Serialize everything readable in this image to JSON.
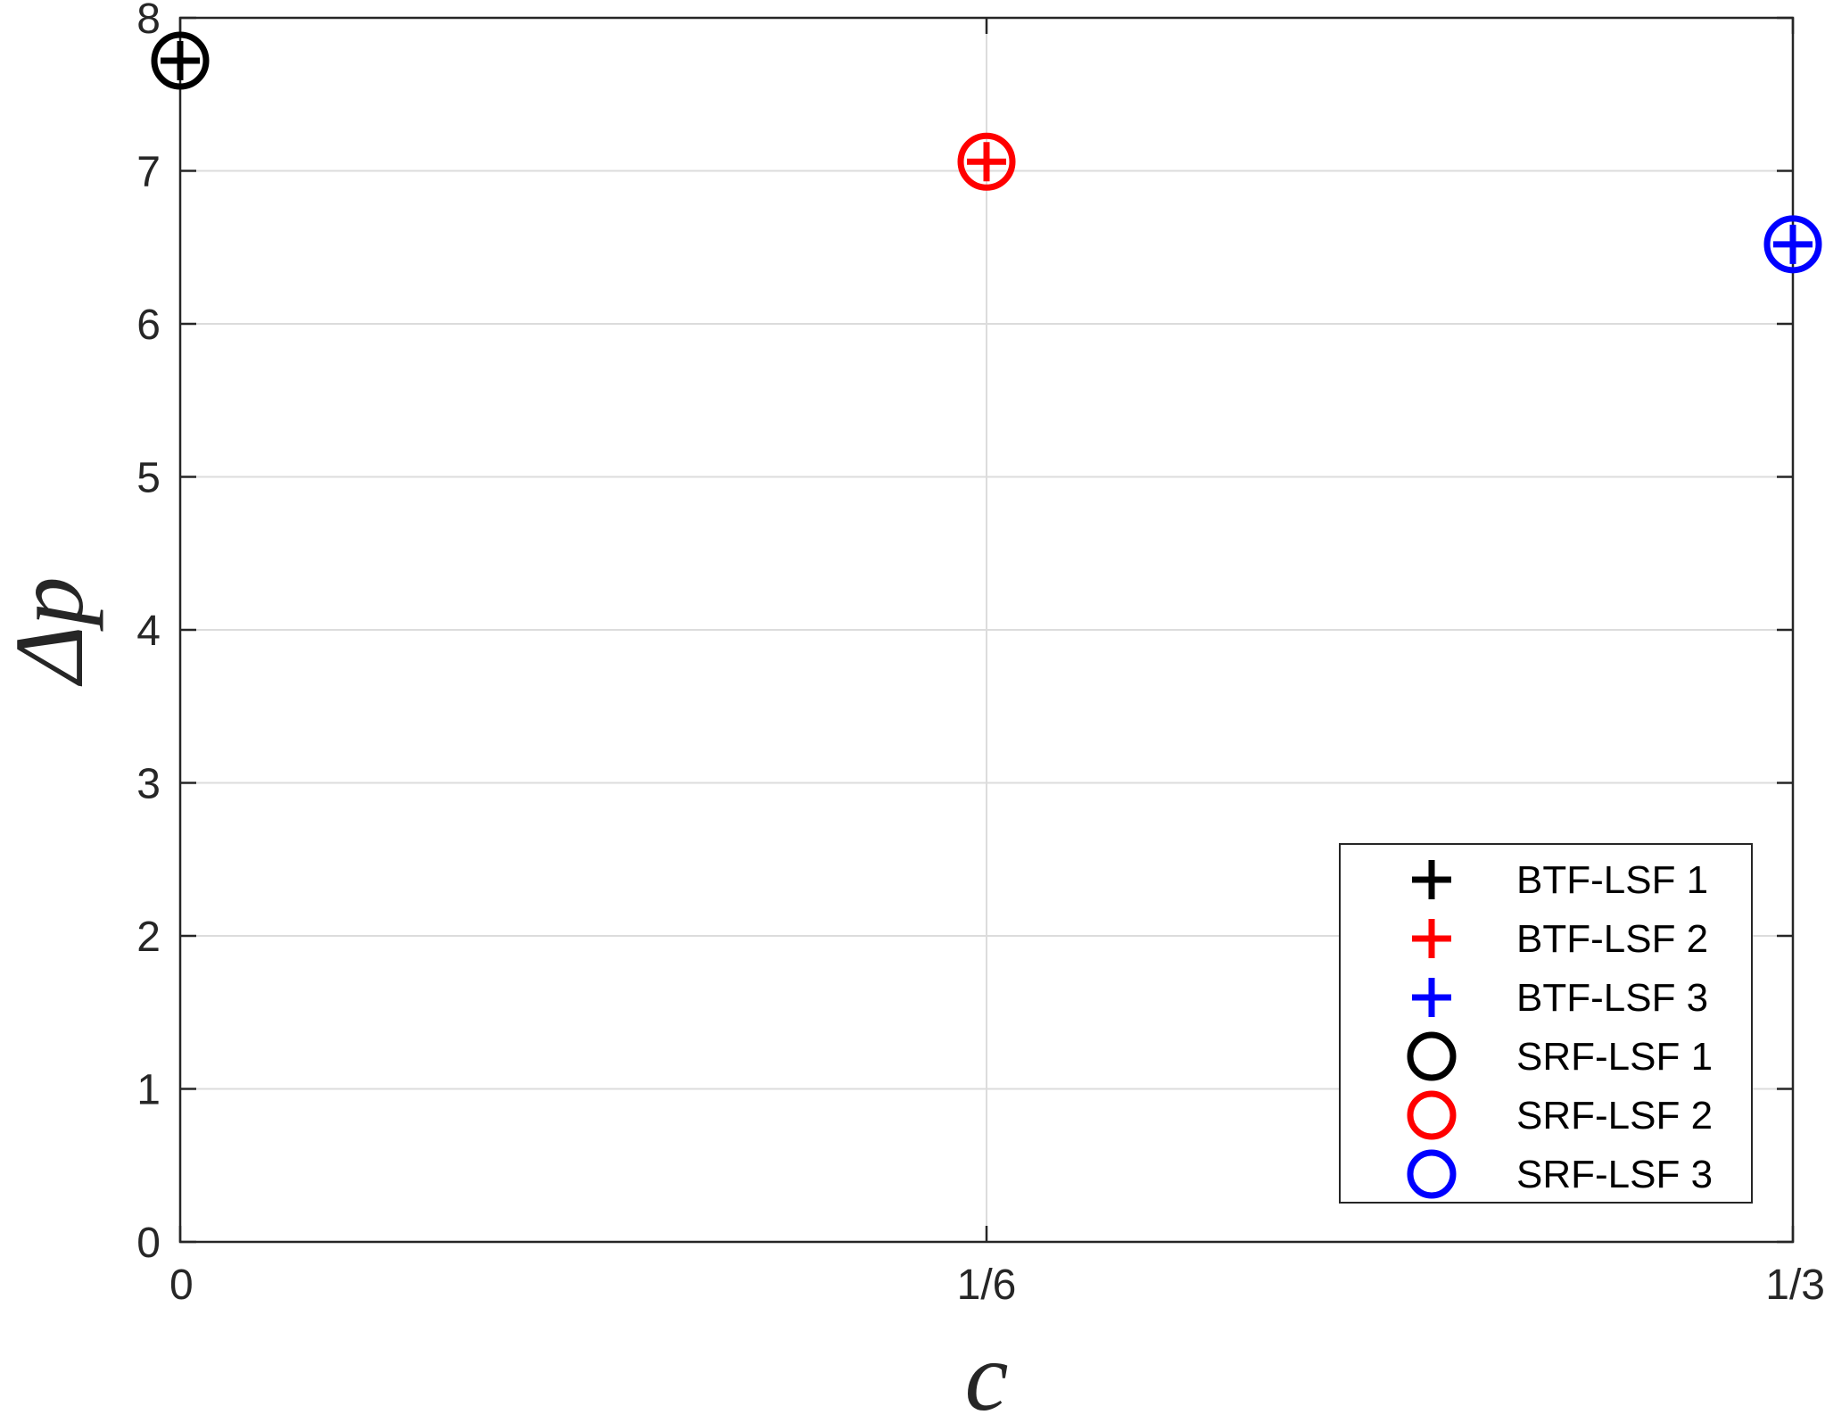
{
  "chart_data": {
    "type": "scatter",
    "xlabel": "c",
    "ylabel": "Δp",
    "xlim": [
      0,
      0.3333333
    ],
    "ylim": [
      0,
      8
    ],
    "grid": true,
    "x_ticks": [
      {
        "value": 0,
        "label": "0"
      },
      {
        "value": 0.1666667,
        "label": "1/6"
      },
      {
        "value": 0.3333333,
        "label": "1/3"
      }
    ],
    "y_ticks": [
      {
        "value": 0,
        "label": "0"
      },
      {
        "value": 1,
        "label": "1"
      },
      {
        "value": 2,
        "label": "2"
      },
      {
        "value": 3,
        "label": "3"
      },
      {
        "value": 4,
        "label": "4"
      },
      {
        "value": 5,
        "label": "5"
      },
      {
        "value": 6,
        "label": "6"
      },
      {
        "value": 7,
        "label": "7"
      },
      {
        "value": 8,
        "label": "8"
      }
    ],
    "legend_position": "bottom-right",
    "series": [
      {
        "name": "BTF-LSF 1",
        "marker": "plus",
        "color": "#000000",
        "points": [
          {
            "x": 0,
            "y": 7.72
          }
        ]
      },
      {
        "name": "BTF-LSF 2",
        "marker": "plus",
        "color": "#ff0000",
        "points": [
          {
            "x": 0.1666667,
            "y": 7.06
          }
        ]
      },
      {
        "name": "BTF-LSF 3",
        "marker": "plus",
        "color": "#0000ff",
        "points": [
          {
            "x": 0.3333333,
            "y": 6.52
          }
        ]
      },
      {
        "name": "SRF-LSF 1",
        "marker": "circle",
        "color": "#000000",
        "points": [
          {
            "x": 0,
            "y": 7.72
          }
        ]
      },
      {
        "name": "SRF-LSF 2",
        "marker": "circle",
        "color": "#ff0000",
        "points": [
          {
            "x": 0.1666667,
            "y": 7.06
          }
        ]
      },
      {
        "name": "SRF-LSF 3",
        "marker": "circle",
        "color": "#0000ff",
        "points": [
          {
            "x": 0.3333333,
            "y": 6.52
          }
        ]
      }
    ]
  }
}
